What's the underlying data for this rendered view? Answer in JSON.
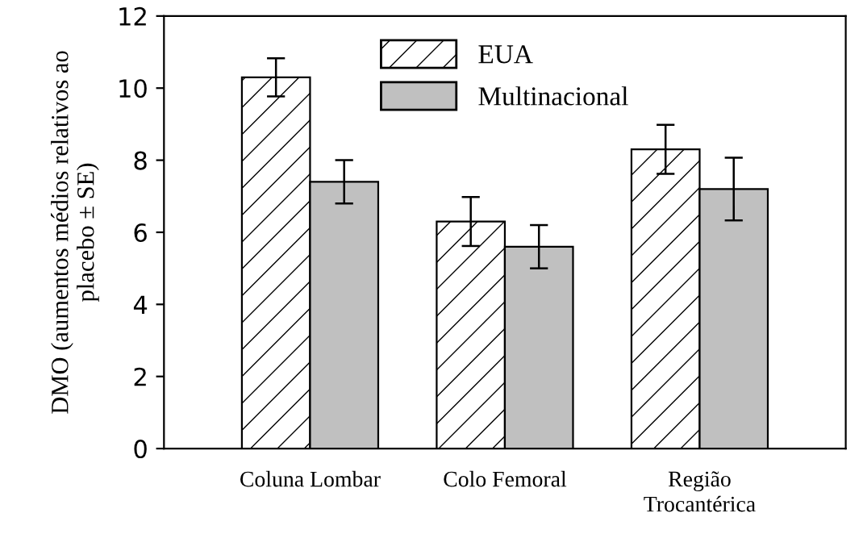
{
  "chart_data": {
    "type": "bar",
    "ylabel": "DMO (aumentos médios relativos ao\nplacebo ± SE)",
    "categories": [
      "Coluna Lombar",
      "Colo Femoral",
      "Região\nTrocantérica"
    ],
    "series": [
      {
        "name": "EUA",
        "color": "#ffffff",
        "values": [
          10.3,
          6.3,
          8.3
        ],
        "errors": [
          0.53,
          0.68,
          0.68
        ]
      },
      {
        "name": "Multinacional",
        "color": "#c0c0c0",
        "values": [
          7.4,
          5.6,
          7.2
        ],
        "errors": [
          0.6,
          0.6,
          0.87
        ]
      }
    ],
    "ylim": [
      0,
      12
    ],
    "yticks": [
      0,
      2,
      4,
      6,
      8,
      10,
      12
    ],
    "grid": false,
    "legend": "top"
  }
}
